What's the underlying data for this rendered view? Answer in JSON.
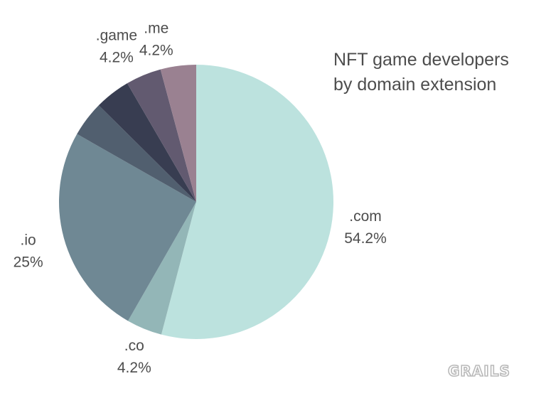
{
  "chart_data": {
    "type": "pie",
    "title_lines": [
      "NFT game developers",
      "by domain extension"
    ],
    "categories": [
      ".com",
      ".co",
      ".io",
      "",
      "",
      ".game",
      ".me"
    ],
    "values": [
      54.2,
      4.2,
      25,
      4.2,
      4.2,
      4.2,
      4.2
    ],
    "value_labels": [
      "54.2%",
      "4.2%",
      "25%",
      "",
      "",
      "4.2%",
      "4.2%"
    ],
    "colors": [
      "#bce2de",
      "#93b6b7",
      "#6f8894",
      "#515f6f",
      "#383d51",
      "#625a70",
      "#9a8191"
    ],
    "start": "12 o'clock",
    "direction": "clockwise"
  },
  "logo_text": "GRAILS"
}
